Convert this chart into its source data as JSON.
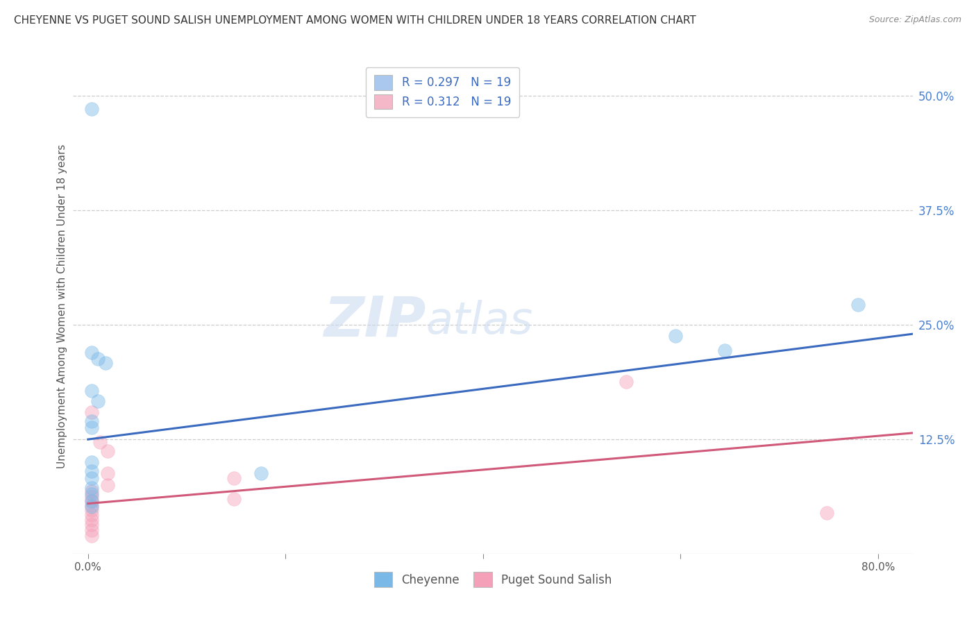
{
  "title": "CHEYENNE VS PUGET SOUND SALISH UNEMPLOYMENT AMONG WOMEN WITH CHILDREN UNDER 18 YEARS CORRELATION CHART",
  "source": "Source: ZipAtlas.com",
  "ylabel": "Unemployment Among Women with Children Under 18 years",
  "xlabel_ticks": [
    "0.0%",
    "",
    "",
    "",
    "80.0%"
  ],
  "xlabel_vals": [
    0.0,
    0.2,
    0.4,
    0.6,
    0.8
  ],
  "ytick_labels": [
    "50.0%",
    "37.5%",
    "25.0%",
    "12.5%"
  ],
  "ytick_vals": [
    0.5,
    0.375,
    0.25,
    0.125
  ],
  "xlim": [
    -0.015,
    0.835
  ],
  "ylim": [
    0.0,
    0.54
  ],
  "legend_entries": [
    {
      "label_r": "R = 0.297",
      "label_n": "N = 19",
      "color": "#aac8ee"
    },
    {
      "label_r": "R = 0.312",
      "label_n": "N = 19",
      "color": "#f4b8c8"
    }
  ],
  "cheyenne_color": "#7ab8e8",
  "puget_color": "#f4a0b8",
  "cheyenne_line_color": "#3a6abf",
  "puget_line_color": "#d05878",
  "cheyenne_points": [
    [
      0.004,
      0.485
    ],
    [
      0.004,
      0.22
    ],
    [
      0.01,
      0.213
    ],
    [
      0.018,
      0.208
    ],
    [
      0.004,
      0.178
    ],
    [
      0.01,
      0.167
    ],
    [
      0.004,
      0.145
    ],
    [
      0.004,
      0.138
    ],
    [
      0.004,
      0.1
    ],
    [
      0.004,
      0.09
    ],
    [
      0.004,
      0.083
    ],
    [
      0.004,
      0.072
    ],
    [
      0.004,
      0.065
    ],
    [
      0.004,
      0.058
    ],
    [
      0.004,
      0.052
    ],
    [
      0.175,
      0.088
    ],
    [
      0.595,
      0.238
    ],
    [
      0.645,
      0.222
    ],
    [
      0.78,
      0.272
    ]
  ],
  "puget_points": [
    [
      0.004,
      0.068
    ],
    [
      0.004,
      0.062
    ],
    [
      0.004,
      0.058
    ],
    [
      0.004,
      0.053
    ],
    [
      0.004,
      0.048
    ],
    [
      0.004,
      0.043
    ],
    [
      0.004,
      0.037
    ],
    [
      0.004,
      0.032
    ],
    [
      0.004,
      0.026
    ],
    [
      0.004,
      0.02
    ],
    [
      0.004,
      0.155
    ],
    [
      0.012,
      0.122
    ],
    [
      0.02,
      0.112
    ],
    [
      0.02,
      0.088
    ],
    [
      0.02,
      0.075
    ],
    [
      0.148,
      0.083
    ],
    [
      0.148,
      0.06
    ],
    [
      0.545,
      0.188
    ],
    [
      0.748,
      0.045
    ]
  ],
  "cheyenne_trendline": {
    "x_start": 0.0,
    "x_end": 0.835,
    "y_start": 0.125,
    "y_end": 0.24
  },
  "puget_trendline": {
    "x_start": 0.0,
    "x_end": 0.835,
    "y_start": 0.055,
    "y_end": 0.132
  },
  "watermark_zip": "ZIP",
  "watermark_atlas": "atlas",
  "background_color": "#ffffff",
  "grid_color": "#c8c8c8",
  "title_fontsize": 11,
  "axis_label_fontsize": 11,
  "tick_fontsize": 11,
  "marker_size": 200
}
